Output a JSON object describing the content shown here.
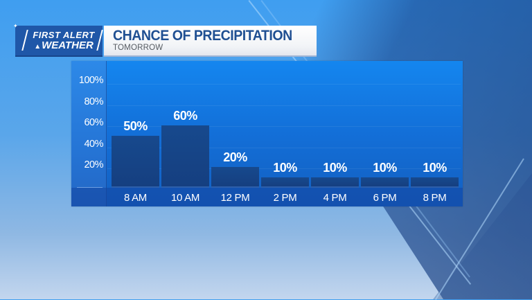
{
  "header": {
    "logo_line1": "FIRST ALERT",
    "logo_line2": "WEATHER",
    "logo_icon": "nbc-peacock-icon",
    "title": "CHANCE OF PRECIPITATION",
    "subtitle": "TOMORROW"
  },
  "colors": {
    "logo_bg": "#1f57a8",
    "title_text": "#1f4f92",
    "chart_bg": "#136fd8",
    "bar_fill": "#153f80",
    "text": "#ffffff"
  },
  "chart_data": {
    "type": "bar",
    "title": "CHANCE OF PRECIPITATION",
    "subtitle": "TOMORROW",
    "categories": [
      "8 AM",
      "10 AM",
      "12 PM",
      "2 PM",
      "4 PM",
      "6 PM",
      "8 PM"
    ],
    "values": [
      50,
      60,
      20,
      10,
      10,
      10,
      10
    ],
    "value_labels": [
      "50%",
      "60%",
      "20%",
      "10%",
      "10%",
      "10%",
      "10%"
    ],
    "ylabel": "",
    "xlabel": "",
    "ylim": [
      0,
      100
    ],
    "yticks": [
      "100%",
      "80%",
      "60%",
      "40%",
      "20%"
    ],
    "grid": true,
    "legend": null
  }
}
